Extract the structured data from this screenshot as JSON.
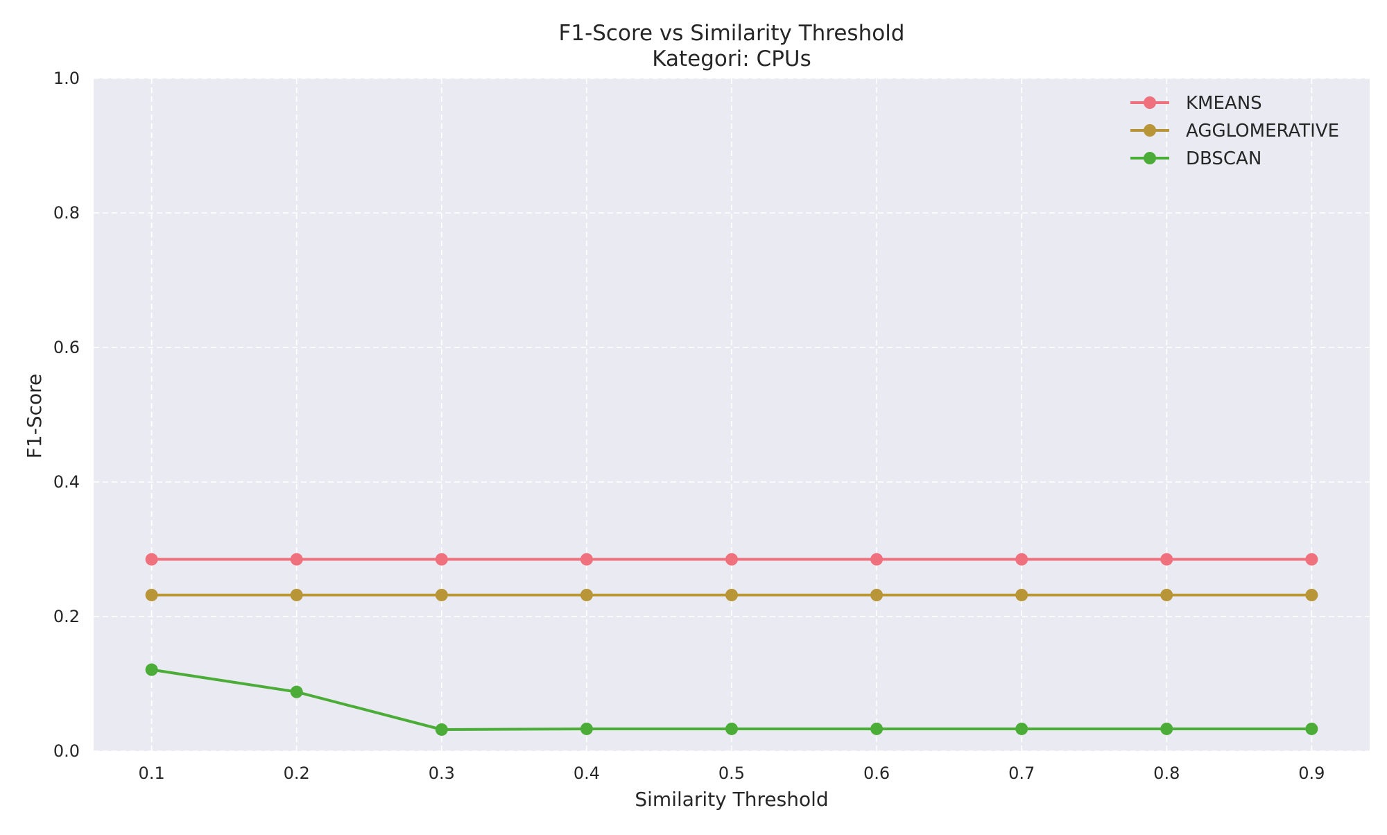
{
  "chart_data": {
    "type": "line",
    "title": "F1-Score vs Similarity Threshold",
    "subtitle": "Kategori: CPUs",
    "xlabel": "Similarity Threshold",
    "ylabel": "F1-Score",
    "x": [
      0.1,
      0.2,
      0.3,
      0.4,
      0.5,
      0.6,
      0.7,
      0.8,
      0.9
    ],
    "xticks": [
      "0.1",
      "0.2",
      "0.3",
      "0.4",
      "0.5",
      "0.6",
      "0.7",
      "0.8",
      "0.9"
    ],
    "yticks": [
      "0.0",
      "0.2",
      "0.4",
      "0.6",
      "0.8",
      "1.0"
    ],
    "xlim": [
      0.06,
      0.94
    ],
    "ylim": [
      0,
      1
    ],
    "grid": true,
    "legend_position": "top-right",
    "series": [
      {
        "name": "KMEANS",
        "color": "#f0717e",
        "values": [
          0.285,
          0.285,
          0.285,
          0.285,
          0.285,
          0.285,
          0.285,
          0.285,
          0.285
        ]
      },
      {
        "name": "AGGLOMERATIVE",
        "color": "#b89537",
        "values": [
          0.232,
          0.232,
          0.232,
          0.232,
          0.232,
          0.232,
          0.232,
          0.232,
          0.232
        ]
      },
      {
        "name": "DBSCAN",
        "color": "#4cac38",
        "values": [
          0.121,
          0.088,
          0.032,
          0.033,
          0.033,
          0.033,
          0.033,
          0.033,
          0.033
        ]
      }
    ],
    "colors": {
      "plot_background": "#eaeaf2",
      "grid": "#ffffff",
      "text": "#262626"
    }
  }
}
